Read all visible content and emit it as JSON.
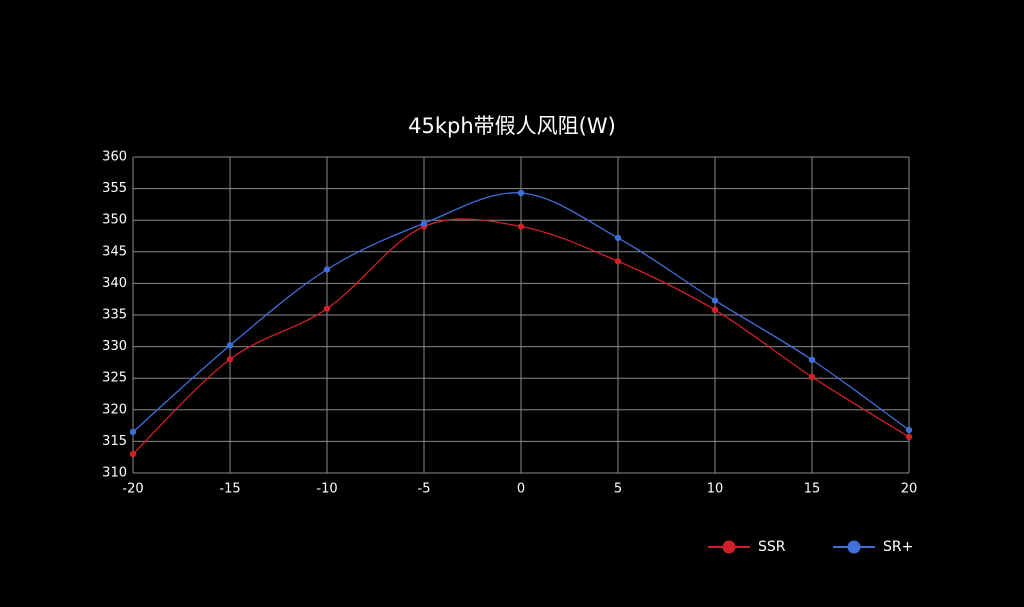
{
  "chart_data": {
    "type": "line",
    "title": "45kph带假人风阻(W)",
    "x": [
      -20,
      -15,
      -10,
      -5,
      0,
      5,
      10,
      15,
      20
    ],
    "series": [
      {
        "name": "SSR",
        "color": "#d0202a",
        "values": [
          313,
          328,
          336,
          349,
          349,
          343.5,
          335.8,
          325.2,
          315.7
        ]
      },
      {
        "name": "SR+",
        "color": "#3f6fd8",
        "values": [
          316.5,
          330.2,
          342.2,
          349.5,
          354.3,
          347.2,
          337.3,
          327.9,
          316.8
        ]
      }
    ],
    "xlim": [
      -20,
      20
    ],
    "xticks": [
      -20,
      -15,
      -10,
      -5,
      0,
      5,
      10,
      15,
      20
    ],
    "ylim": [
      310,
      360
    ],
    "yticks": [
      310,
      315,
      320,
      325,
      330,
      335,
      340,
      345,
      350,
      355,
      360
    ],
    "grid": true,
    "legend": "bottom-right"
  }
}
